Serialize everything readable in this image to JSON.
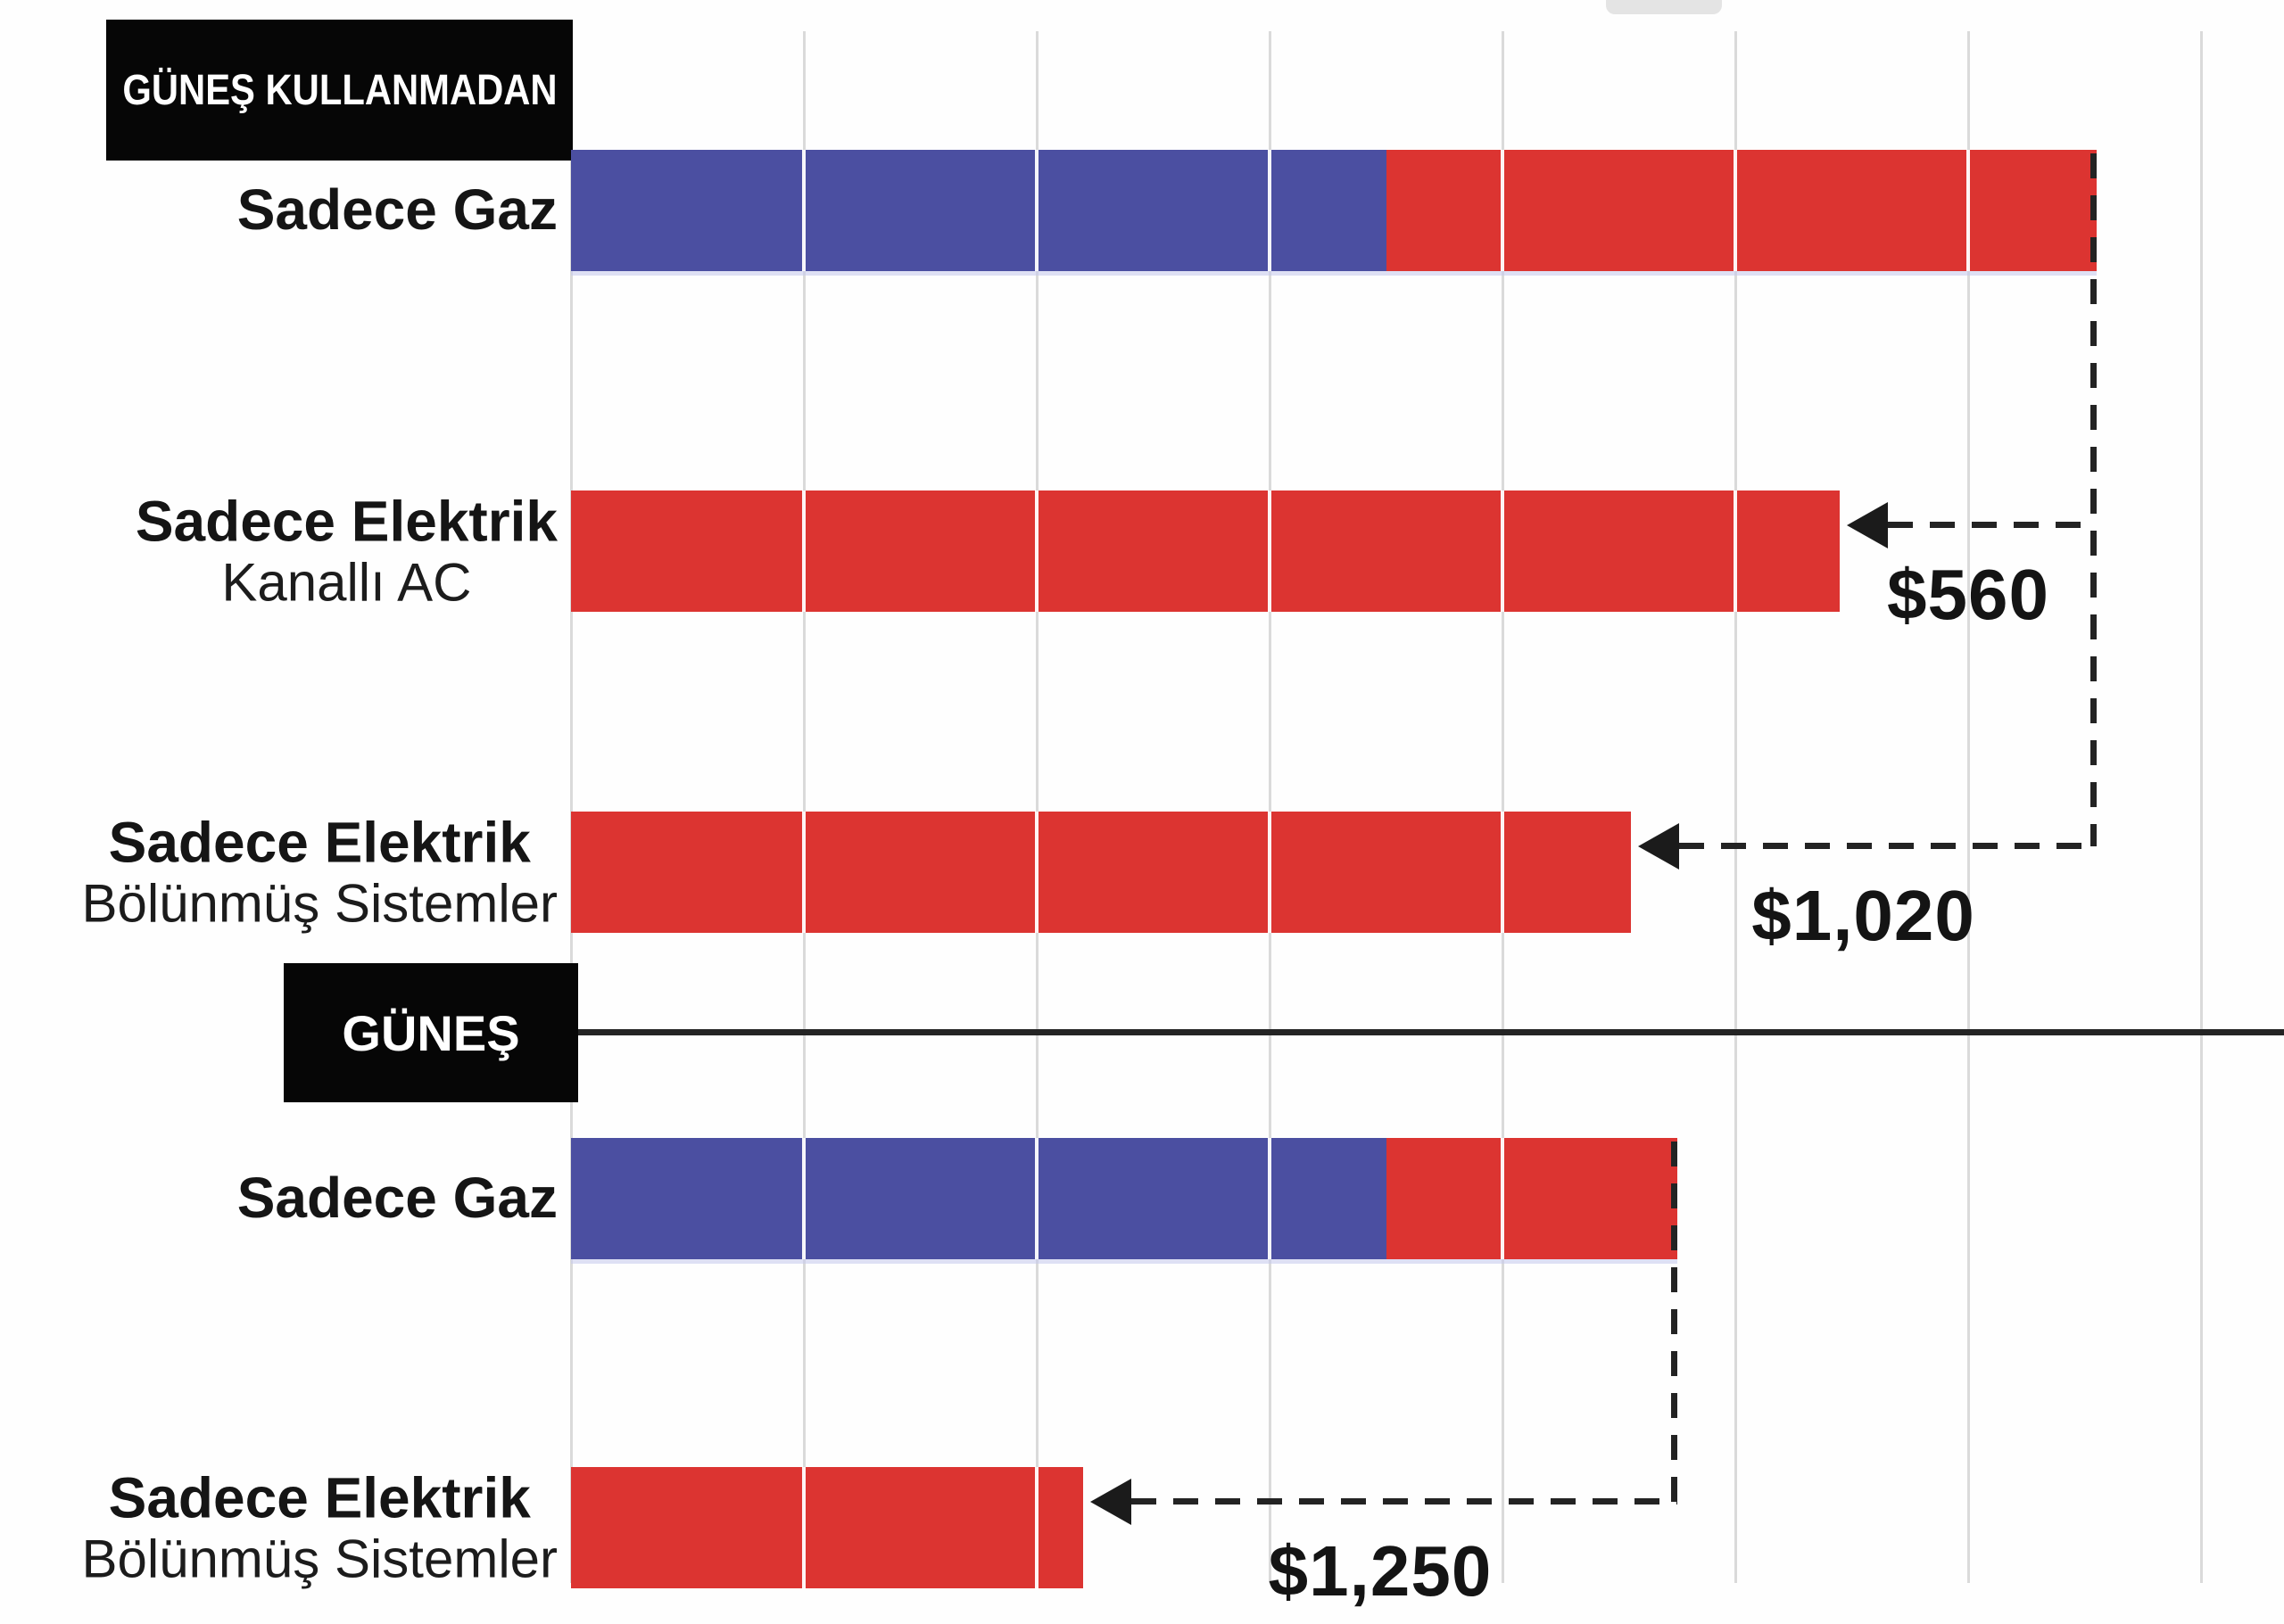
{
  "page": {
    "background_color": "#fefefe",
    "grid_color": "#dadada",
    "line_color": "#232323",
    "text_color": "#151515"
  },
  "chart_data": {
    "type": "bar",
    "orientation": "horizontal",
    "stacked": true,
    "grid": "on",
    "axis": {
      "gridline_count": 8,
      "tick_labels_visible": false,
      "unit_note": "no axis tick labels visible; values estimated in gridline units (1 unit = 1 gridline spacing)"
    },
    "series_legend": [
      {
        "id": "gas",
        "name": "Gaz",
        "color": "#4b4fa1"
      },
      {
        "id": "electric",
        "name": "Elektrik",
        "color": "#dc3431"
      }
    ],
    "sections": [
      {
        "label": "GÜNEŞ KULLANMADAN",
        "rows": [
          {
            "label_bold": "Sadece Gaz",
            "label_sub": "",
            "segments": [
              {
                "series": "gas",
                "value": 3.5
              },
              {
                "series": "electric",
                "value": 3.05
              }
            ]
          },
          {
            "label_bold": "Sadece Elektrik",
            "label_sub": "Kanallı AC",
            "segments": [
              {
                "series": "electric",
                "value": 5.45
              }
            ]
          },
          {
            "label_bold": "Sadece Elektrik",
            "label_sub": "Bölünmüş Sistemler",
            "segments": [
              {
                "series": "electric",
                "value": 4.55
              }
            ]
          }
        ]
      },
      {
        "label": "GÜNEŞ",
        "rows": [
          {
            "label_bold": "Sadece Gaz",
            "label_sub": "",
            "segments": [
              {
                "series": "gas",
                "value": 3.5
              },
              {
                "series": "electric",
                "value": 1.25
              }
            ]
          },
          {
            "label_bold": "Sadece Elektrik",
            "label_sub": "Bölünmüş Sistemler",
            "segments": [
              {
                "series": "electric",
                "value": 2.2
              }
            ]
          }
        ]
      }
    ],
    "annotations": [
      {
        "label": "$560",
        "from_row": 0,
        "to_row": 1
      },
      {
        "label": "$1,020",
        "from_row": 0,
        "to_row": 2
      },
      {
        "label": "$1,250",
        "from_row": 3,
        "to_row": 4
      }
    ]
  }
}
